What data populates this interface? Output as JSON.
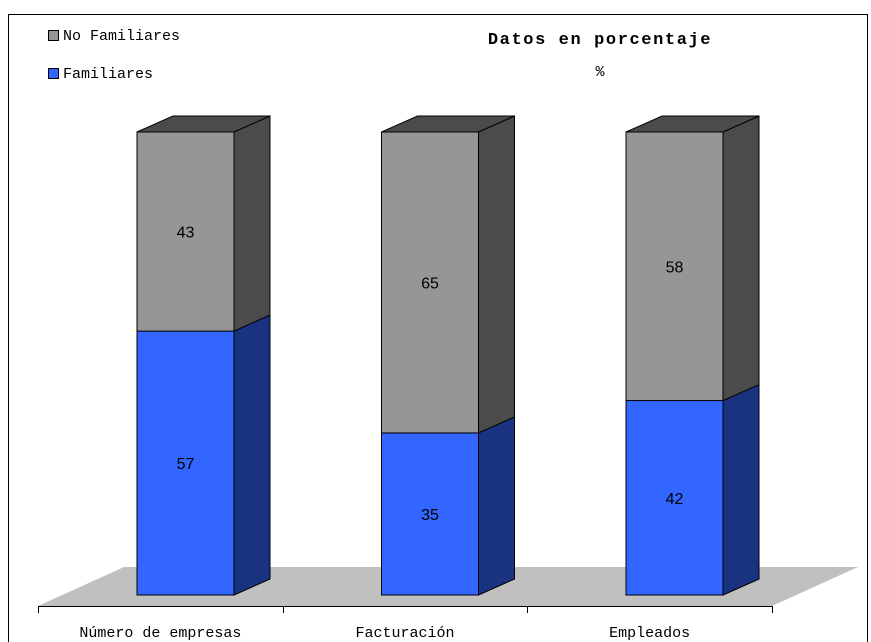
{
  "chart_data": {
    "type": "bar",
    "stacked": true,
    "three_d": true,
    "title": "Datos en porcentaje",
    "subtitle": "%",
    "categories": [
      "Número de empresas",
      "Facturación",
      "Empleados"
    ],
    "series": [
      {
        "name": "Familiares",
        "values": [
          57,
          35,
          42
        ],
        "color": "#3366ff"
      },
      {
        "name": "No Familiares",
        "values": [
          43,
          65,
          58
        ],
        "color": "#969696"
      }
    ],
    "legend_order": [
      1,
      0
    ],
    "ylim": [
      0,
      100
    ],
    "grid": false,
    "legend_position": "top-left"
  }
}
